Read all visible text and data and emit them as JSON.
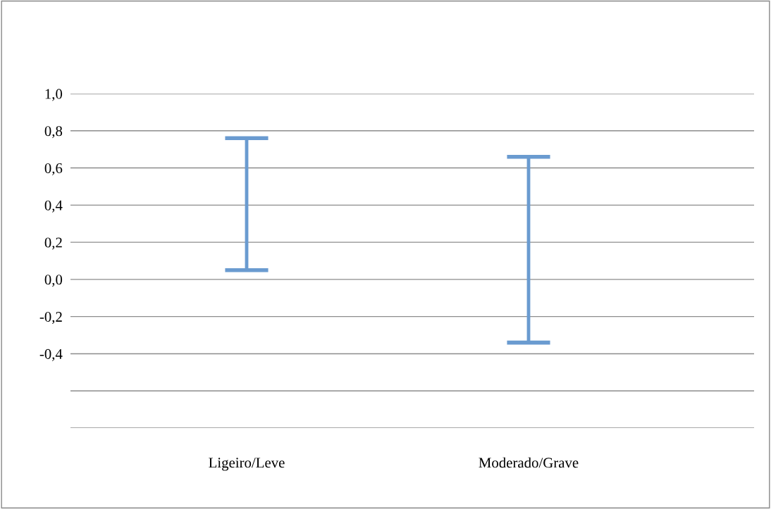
{
  "chart_data": {
    "type": "bar",
    "categories": [
      "Ligeiro/Leve",
      "Moderado/Grave"
    ],
    "base": [
      0.05,
      -0.34
    ],
    "values": [
      0.71,
      1.0
    ],
    "color": "#6a9bd0",
    "ylim": [
      -0.8,
      1.0
    ],
    "yticks": [
      {
        "value": 1.0,
        "label": "1,0"
      },
      {
        "value": 0.8,
        "label": "0,8"
      },
      {
        "value": 0.6,
        "label": "0,6"
      },
      {
        "value": 0.4,
        "label": "0,4"
      },
      {
        "value": 0.2,
        "label": "0,2"
      },
      {
        "value": 0.0,
        "label": "0,0"
      },
      {
        "value": -0.2,
        "label": "-0,2"
      },
      {
        "value": -0.4,
        "label": "-0,4"
      },
      {
        "value": -0.6,
        "label": null
      },
      {
        "value": -0.8,
        "label": null
      }
    ],
    "grid": "y",
    "legend": false
  }
}
